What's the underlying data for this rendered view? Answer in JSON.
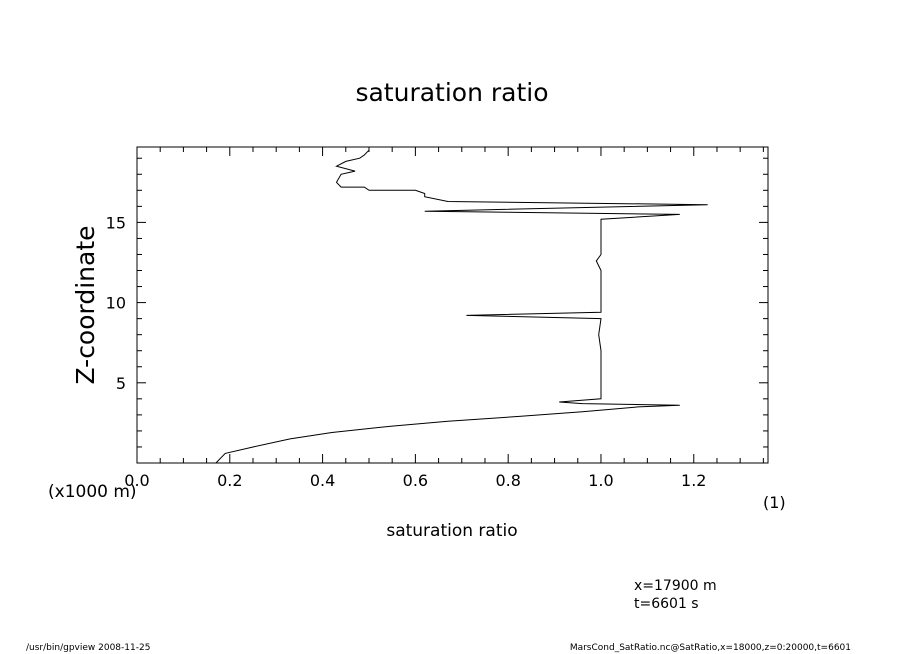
{
  "chart_data": {
    "type": "line",
    "title": "saturation ratio",
    "xlabel": "saturation ratio",
    "ylabel": "Z-coordinate",
    "x_unit": "(1)",
    "y_unit": "(x1000 m)",
    "xlim": [
      0.0,
      1.36
    ],
    "ylim": [
      0.0,
      19.7
    ],
    "x_ticks": [
      "0.0",
      "0.2",
      "0.4",
      "0.6",
      "0.8",
      "1.0",
      "1.2"
    ],
    "x_tick_values": [
      0.0,
      0.2,
      0.4,
      0.6,
      0.8,
      1.0,
      1.2
    ],
    "y_ticks": [
      "5",
      "10",
      "15"
    ],
    "y_tick_values": [
      5,
      10,
      15
    ],
    "grid": false,
    "series": [
      {
        "points": [
          [
            0.17,
            0.0
          ],
          [
            0.19,
            0.6
          ],
          [
            0.25,
            1.0
          ],
          [
            0.33,
            1.5
          ],
          [
            0.42,
            1.9
          ],
          [
            0.55,
            2.3
          ],
          [
            0.67,
            2.6
          ],
          [
            0.82,
            2.9
          ],
          [
            0.96,
            3.2
          ],
          [
            1.08,
            3.5
          ],
          [
            1.17,
            3.6
          ],
          [
            0.96,
            3.7
          ],
          [
            0.91,
            3.8
          ],
          [
            1.0,
            4.0
          ],
          [
            1.0,
            5.0
          ],
          [
            1.0,
            7.0
          ],
          [
            0.995,
            8.0
          ],
          [
            1.0,
            9.0
          ],
          [
            0.71,
            9.2
          ],
          [
            1.0,
            9.4
          ],
          [
            1.0,
            10.0
          ],
          [
            1.0,
            12.0
          ],
          [
            0.99,
            12.6
          ],
          [
            1.0,
            13.0
          ],
          [
            1.0,
            15.2
          ],
          [
            1.17,
            15.5
          ],
          [
            0.62,
            15.7
          ],
          [
            1.23,
            16.1
          ],
          [
            0.67,
            16.3
          ],
          [
            0.62,
            16.6
          ],
          [
            0.62,
            16.8
          ],
          [
            0.6,
            17.0
          ],
          [
            0.5,
            17.0
          ],
          [
            0.49,
            17.2
          ],
          [
            0.44,
            17.2
          ],
          [
            0.43,
            17.5
          ],
          [
            0.44,
            18.0
          ],
          [
            0.47,
            18.2
          ],
          [
            0.43,
            18.5
          ],
          [
            0.45,
            18.8
          ],
          [
            0.48,
            19.0
          ],
          [
            0.49,
            19.2
          ],
          [
            0.5,
            19.5
          ]
        ]
      }
    ]
  },
  "annotations": {
    "position": "x=17900 m",
    "time": "t=6601 s"
  },
  "footer": {
    "left": "/usr/bin/gpview   2008-11-25",
    "right": "MarsCond_SatRatio.nc@SatRatio,x=18000,z=0:20000,t=6601"
  }
}
